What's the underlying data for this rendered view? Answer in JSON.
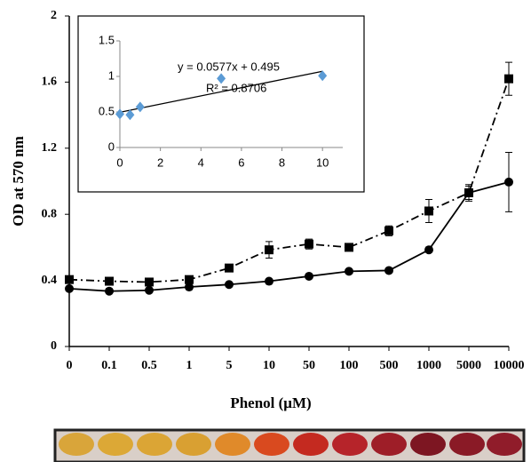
{
  "chart_data": [
    {
      "type": "line",
      "x_label": "Phenol (μM)",
      "y_label": "OD at 570 nm",
      "categories": [
        "0",
        "0.1",
        "0.5",
        "1",
        "5",
        "10",
        "50",
        "100",
        "500",
        "1000",
        "5000",
        "10000"
      ],
      "ylim": [
        0,
        2
      ],
      "yticks": [
        0,
        0.4,
        0.8,
        1.2,
        1.6,
        2
      ],
      "series": [
        {
          "color": "#000000",
          "marker": "circle",
          "dash": "solid",
          "values": [
            0.35,
            0.335,
            0.34,
            0.36,
            0.375,
            0.395,
            0.425,
            0.455,
            0.46,
            0.585,
            0.93,
            0.995
          ],
          "errors": [
            0.01,
            0.01,
            0.01,
            0.01,
            0.01,
            0.01,
            0.01,
            0.01,
            0.01,
            0.01,
            0.04,
            0.18
          ]
        },
        {
          "color": "#000000",
          "marker": "square",
          "dash": "dashdot",
          "values": [
            0.405,
            0.395,
            0.39,
            0.405,
            0.475,
            0.585,
            0.62,
            0.6,
            0.7,
            0.82,
            0.93,
            1.62
          ],
          "errors": [
            0.01,
            0.01,
            0.01,
            0.01,
            0.01,
            0.05,
            0.03,
            0.01,
            0.03,
            0.07,
            0.05,
            0.1
          ]
        }
      ]
    },
    {
      "type": "scatter",
      "x": [
        0,
        0.5,
        1,
        5,
        10
      ],
      "values": [
        0.47,
        0.46,
        0.57,
        0.97,
        1.01
      ],
      "color": "#5b9bd5",
      "xlim": [
        0,
        11
      ],
      "xticks": [
        0,
        2,
        4,
        6,
        8,
        10
      ],
      "ylim": [
        0,
        1.5
      ],
      "yticks": [
        0,
        0.5,
        1,
        1.5
      ],
      "trend_slope": 0.0577,
      "trend_intercept": 0.495,
      "equation": "y = 0.0577x + 0.495",
      "r_squared": "R² = 0.8706"
    }
  ]
}
